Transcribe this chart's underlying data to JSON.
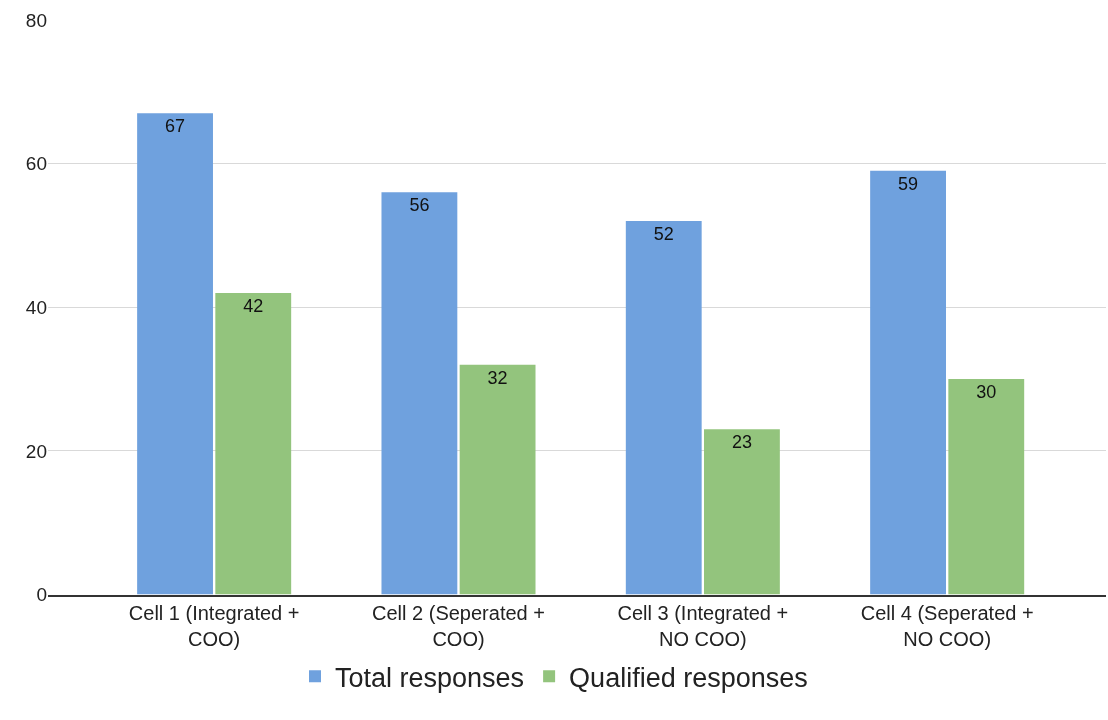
{
  "chart_data": {
    "type": "bar",
    "categories": [
      "Cell 1 (Integrated + COO)",
      "Cell 2 (Seperated + COO)",
      "Cell 3 (Integrated + NO COO)",
      "Cell 4 (Seperated + NO COO)"
    ],
    "series": [
      {
        "name": "Total responses",
        "color": "#6fa1de",
        "values": [
          67,
          56,
          52,
          59
        ]
      },
      {
        "name": "Qualified responses",
        "color": "#93c47d",
        "values": [
          42,
          32,
          23,
          30
        ]
      }
    ],
    "ylim": [
      0,
      80
    ],
    "yticks": [
      0,
      20,
      40,
      60,
      80
    ],
    "grid": "y",
    "legend": "bottom",
    "data_labels": true
  }
}
